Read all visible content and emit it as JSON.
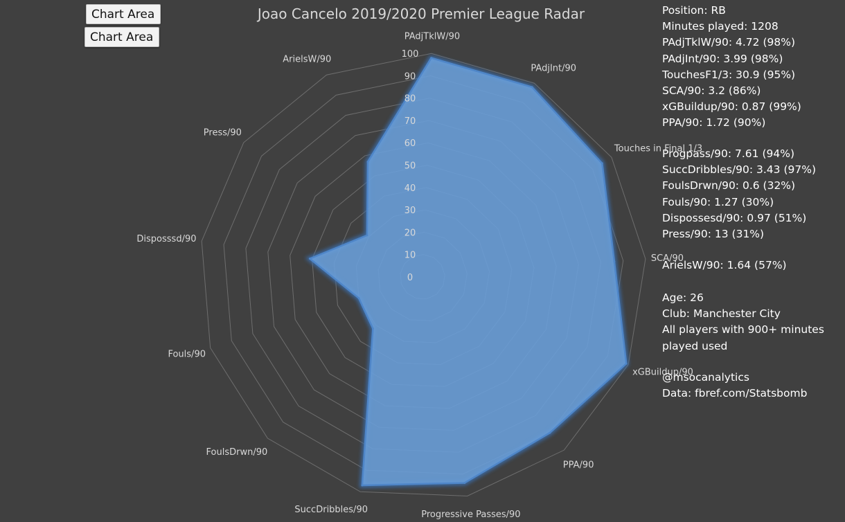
{
  "tooltips": [
    "Chart Area",
    "Chart Area"
  ],
  "colors": {
    "background": "#404040",
    "grid": "#6e6e6e",
    "fill": "#6a9fdb",
    "stroke": "#4f86c8",
    "glow": "#3a6fb0",
    "text": "#d9d9d9"
  },
  "chart_data": {
    "type": "radar",
    "title": "Joao Cancelo 2019/2020 Premier League Radar",
    "rmin": 0,
    "rmax": 100,
    "ticks": [
      "0",
      "10",
      "20",
      "30",
      "40",
      "50",
      "60",
      "70",
      "80",
      "90",
      "100"
    ],
    "categories": [
      "PAdjTklW/90",
      "PAdjInt/90",
      "Touches in Final 1/3",
      "SCA/90",
      "xGBuildup/90",
      "PPA/90",
      "Progressive Passes/90",
      "SuccDribbles/90",
      "FoulsDrwn/90",
      "Fouls/90",
      "Disposssd/90",
      "Press/90",
      "ArielsW/90"
    ],
    "values": [
      98,
      98,
      95,
      86,
      99,
      90,
      94,
      97,
      32,
      30,
      51,
      31,
      57
    ],
    "grid": true,
    "legend": "none"
  },
  "info_block_1": [
    "Position: RB",
    "Minutes played: 1208",
    "PAdjTklW/90: 4.72 (98%)",
    "PAdjInt/90: 3.99 (98%)",
    "TouchesF1/3: 30.9 (95%)",
    "SCA/90: 3.2 (86%)",
    "xGBuildup/90: 0.87 (99%)",
    "PPA/90: 1.72 (90%)"
  ],
  "info_block_2": [
    "Progpass/90: 7.61 (94%)",
    "SuccDribbles/90: 3.43 (97%)",
    "FoulsDrwn/90: 0.6 (32%)",
    "Fouls/90: 1.27 (30%)",
    "Dispossesd/90: 0.97 (51%)",
    "Press/90: 13 (31%)"
  ],
  "info_block_3": [
    "ArielsW/90: 1.64 (57%)"
  ],
  "info_block_4": [
    "Age: 26",
    "Club: Manchester City",
    "All players with 900+ minutes",
    "played used"
  ],
  "info_block_5": [
    "@msocanalytics",
    "Data: fbref.com/Statsbomb"
  ]
}
